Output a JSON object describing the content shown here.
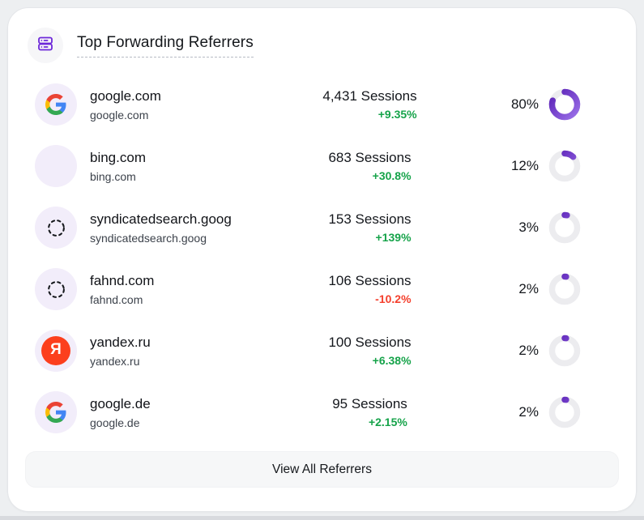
{
  "card": {
    "title": "Top Forwarding Referrers",
    "header_icon": "server-stack-icon",
    "view_all_label": "View All Referrers"
  },
  "referrers": [
    {
      "name": "google.com",
      "domain": "google.com",
      "sessions": "4,431 Sessions",
      "change": "+9.35%",
      "change_dir": "up",
      "percent": 80,
      "percent_label": "80%",
      "icon": "google-logo"
    },
    {
      "name": "bing.com",
      "domain": "bing.com",
      "sessions": "683 Sessions",
      "change": "+30.8%",
      "change_dir": "up",
      "percent": 12,
      "percent_label": "12%",
      "icon": "none"
    },
    {
      "name": "syndicatedsearch.goog",
      "domain": "syndicatedsearch.goog",
      "sessions": "153 Sessions",
      "change": "+139%",
      "change_dir": "up",
      "percent": 3,
      "percent_label": "3%",
      "icon": "dashed-circle-placeholder"
    },
    {
      "name": "fahnd.com",
      "domain": "fahnd.com",
      "sessions": "106 Sessions",
      "change": "-10.2%",
      "change_dir": "down",
      "percent": 2,
      "percent_label": "2%",
      "icon": "dashed-circle-placeholder"
    },
    {
      "name": "yandex.ru",
      "domain": "yandex.ru",
      "sessions": "100 Sessions",
      "change": "+6.38%",
      "change_dir": "up",
      "percent": 2,
      "percent_label": "2%",
      "icon": "yandex-logo"
    },
    {
      "name": "google.de",
      "domain": "google.de",
      "sessions": "95 Sessions",
      "change": "+2.15%",
      "change_dir": "up",
      "percent": 2,
      "percent_label": "2%",
      "icon": "google-logo"
    }
  ],
  "colors": {
    "positive": "#16a34a",
    "negative": "#f43f2c",
    "accent": "#6d28d9",
    "donut_dark": "#5b21b6",
    "donut_light": "#9a70e8",
    "donut_track": "#ececef",
    "avatar_bg": "#f2edfa",
    "yandex_red": "#fc3f1d"
  }
}
